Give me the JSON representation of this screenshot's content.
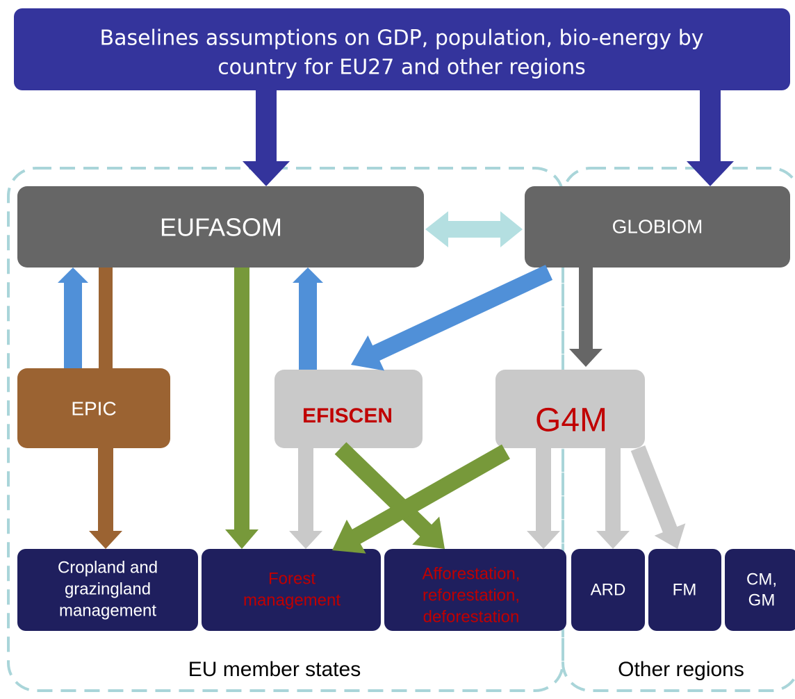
{
  "banner": [
    "Baselines assumptions on GDP, population, bio-energy by",
    "country for EU27 and other regions"
  ],
  "models": [
    "EUFASOM",
    "GLOBIOM",
    "EPIC",
    "EFISCEN",
    "G4M"
  ],
  "outputs": [
    [
      "Cropland and",
      "grazingland",
      "management"
    ],
    [
      "Forest",
      "management"
    ],
    [
      "Afforestation,",
      "reforestation,",
      "deforestation"
    ],
    [
      "ARD"
    ],
    [
      "FM"
    ],
    [
      "CM,",
      "GM"
    ]
  ],
  "regions": [
    "EU member states",
    "Other regions"
  ]
}
